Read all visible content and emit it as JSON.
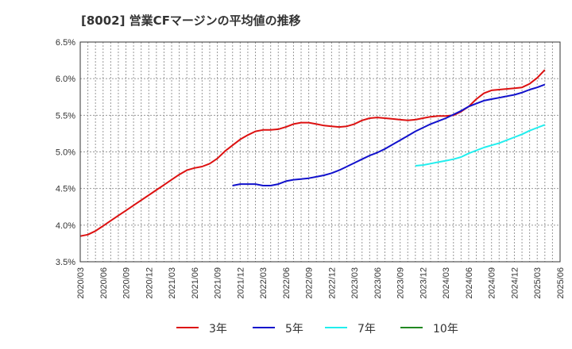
{
  "chart_data": {
    "type": "line",
    "title": "[8002]  営業CFマージンの平均値の推移",
    "xlabel": "",
    "ylabel": "",
    "ylim": [
      3.5,
      6.5
    ],
    "yticks": [
      "3.5%",
      "4.0%",
      "4.5%",
      "5.0%",
      "5.5%",
      "6.0%",
      "6.5%"
    ],
    "xticks": [
      "2020/03",
      "2020/06",
      "2020/09",
      "2020/12",
      "2021/03",
      "2021/06",
      "2021/09",
      "2021/12",
      "2022/03",
      "2022/06",
      "2022/09",
      "2022/12",
      "2023/03",
      "2023/06",
      "2023/09",
      "2023/12",
      "2024/03",
      "2024/06",
      "2024/09",
      "2024/12",
      "2025/03",
      "2025/06"
    ],
    "grid": true,
    "legend_position": "bottom",
    "series": [
      {
        "name": "3年",
        "color": "#dd1111",
        "points": [
          [
            "2020/03",
            3.85
          ],
          [
            "2020/04",
            3.87
          ],
          [
            "2020/05",
            3.92
          ],
          [
            "2020/06",
            3.99
          ],
          [
            "2020/07",
            4.06
          ],
          [
            "2020/08",
            4.13
          ],
          [
            "2020/09",
            4.2
          ],
          [
            "2020/10",
            4.27
          ],
          [
            "2020/11",
            4.34
          ],
          [
            "2020/12",
            4.41
          ],
          [
            "2021/01",
            4.48
          ],
          [
            "2021/02",
            4.55
          ],
          [
            "2021/03",
            4.62
          ],
          [
            "2021/04",
            4.69
          ],
          [
            "2021/05",
            4.75
          ],
          [
            "2021/06",
            4.78
          ],
          [
            "2021/07",
            4.8
          ],
          [
            "2021/08",
            4.84
          ],
          [
            "2021/09",
            4.91
          ],
          [
            "2021/10",
            5.01
          ],
          [
            "2021/11",
            5.09
          ],
          [
            "2021/12",
            5.17
          ],
          [
            "2022/01",
            5.23
          ],
          [
            "2022/02",
            5.28
          ],
          [
            "2022/03",
            5.3
          ],
          [
            "2022/04",
            5.3
          ],
          [
            "2022/05",
            5.31
          ],
          [
            "2022/06",
            5.34
          ],
          [
            "2022/07",
            5.38
          ],
          [
            "2022/08",
            5.4
          ],
          [
            "2022/09",
            5.4
          ],
          [
            "2022/10",
            5.38
          ],
          [
            "2022/11",
            5.36
          ],
          [
            "2022/12",
            5.35
          ],
          [
            "2023/01",
            5.34
          ],
          [
            "2023/02",
            5.35
          ],
          [
            "2023/03",
            5.38
          ],
          [
            "2023/04",
            5.43
          ],
          [
            "2023/05",
            5.46
          ],
          [
            "2023/06",
            5.47
          ],
          [
            "2023/07",
            5.46
          ],
          [
            "2023/08",
            5.45
          ],
          [
            "2023/09",
            5.44
          ],
          [
            "2023/10",
            5.43
          ],
          [
            "2023/11",
            5.44
          ],
          [
            "2023/12",
            5.46
          ],
          [
            "2024/01",
            5.48
          ],
          [
            "2024/02",
            5.49
          ],
          [
            "2024/03",
            5.49
          ],
          [
            "2024/04",
            5.5
          ],
          [
            "2024/05",
            5.55
          ],
          [
            "2024/06",
            5.62
          ],
          [
            "2024/07",
            5.72
          ],
          [
            "2024/08",
            5.8
          ],
          [
            "2024/09",
            5.84
          ],
          [
            "2024/10",
            5.85
          ],
          [
            "2024/11",
            5.86
          ],
          [
            "2024/12",
            5.87
          ],
          [
            "2025/01",
            5.88
          ],
          [
            "2025/02",
            5.93
          ],
          [
            "2025/03",
            6.01
          ],
          [
            "2025/04",
            6.12
          ]
        ]
      },
      {
        "name": "5年",
        "color": "#1111cc",
        "points": [
          [
            "2021/11",
            4.54
          ],
          [
            "2021/12",
            4.56
          ],
          [
            "2022/01",
            4.56
          ],
          [
            "2022/02",
            4.56
          ],
          [
            "2022/03",
            4.54
          ],
          [
            "2022/04",
            4.54
          ],
          [
            "2022/05",
            4.56
          ],
          [
            "2022/06",
            4.6
          ],
          [
            "2022/07",
            4.62
          ],
          [
            "2022/08",
            4.63
          ],
          [
            "2022/09",
            4.64
          ],
          [
            "2022/10",
            4.66
          ],
          [
            "2022/11",
            4.68
          ],
          [
            "2022/12",
            4.71
          ],
          [
            "2023/01",
            4.75
          ],
          [
            "2023/02",
            4.8
          ],
          [
            "2023/03",
            4.85
          ],
          [
            "2023/04",
            4.9
          ],
          [
            "2023/05",
            4.95
          ],
          [
            "2023/06",
            4.99
          ],
          [
            "2023/07",
            5.04
          ],
          [
            "2023/08",
            5.1
          ],
          [
            "2023/09",
            5.16
          ],
          [
            "2023/10",
            5.22
          ],
          [
            "2023/11",
            5.28
          ],
          [
            "2023/12",
            5.33
          ],
          [
            "2024/01",
            5.38
          ],
          [
            "2024/02",
            5.42
          ],
          [
            "2024/03",
            5.46
          ],
          [
            "2024/04",
            5.51
          ],
          [
            "2024/05",
            5.56
          ],
          [
            "2024/06",
            5.62
          ],
          [
            "2024/07",
            5.66
          ],
          [
            "2024/08",
            5.7
          ],
          [
            "2024/09",
            5.72
          ],
          [
            "2024/10",
            5.74
          ],
          [
            "2024/11",
            5.76
          ],
          [
            "2024/12",
            5.78
          ],
          [
            "2025/01",
            5.81
          ],
          [
            "2025/02",
            5.85
          ],
          [
            "2025/03",
            5.88
          ],
          [
            "2025/04",
            5.92
          ]
        ]
      },
      {
        "name": "7年",
        "color": "#22eeee",
        "points": [
          [
            "2023/11",
            4.81
          ],
          [
            "2023/12",
            4.82
          ],
          [
            "2024/01",
            4.84
          ],
          [
            "2024/02",
            4.86
          ],
          [
            "2024/03",
            4.88
          ],
          [
            "2024/04",
            4.9
          ],
          [
            "2024/05",
            4.93
          ],
          [
            "2024/06",
            4.98
          ],
          [
            "2024/07",
            5.02
          ],
          [
            "2024/08",
            5.06
          ],
          [
            "2024/09",
            5.09
          ],
          [
            "2024/10",
            5.12
          ],
          [
            "2024/11",
            5.16
          ],
          [
            "2024/12",
            5.2
          ],
          [
            "2025/01",
            5.24
          ],
          [
            "2025/02",
            5.29
          ],
          [
            "2025/03",
            5.33
          ],
          [
            "2025/04",
            5.37
          ]
        ]
      },
      {
        "name": "10年",
        "color": "#228822",
        "points": []
      }
    ]
  }
}
